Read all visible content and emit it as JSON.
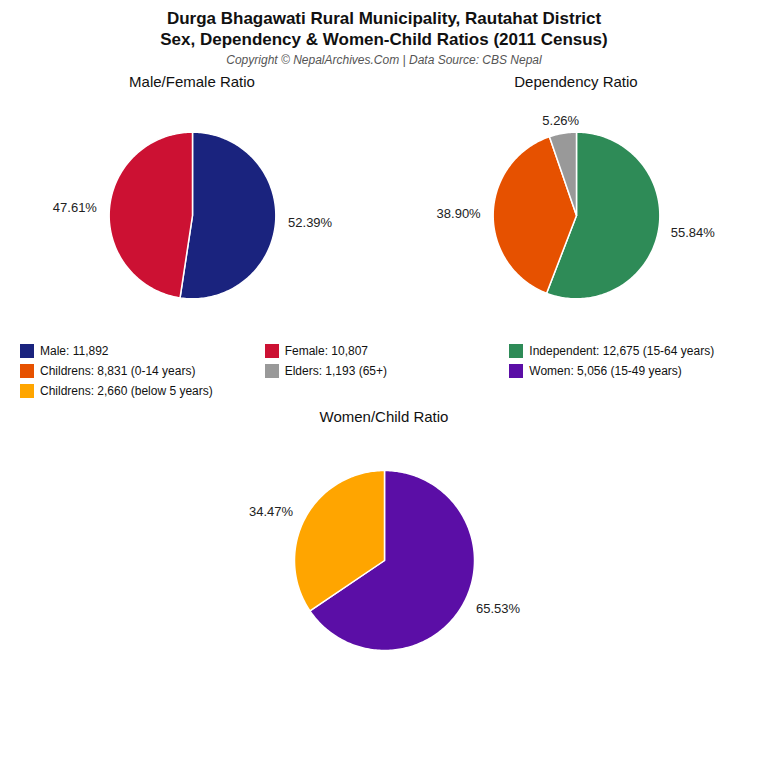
{
  "title": "Durga Bhagawati Rural Municipality, Rautahat District",
  "subtitle": "Sex, Dependency & Women-Child Ratios (2011 Census)",
  "caption": "Copyright © NepalArchives.Com | Data Source: CBS Nepal",
  "chart_data": [
    {
      "type": "pie",
      "title": "Male/Female Ratio",
      "categories": [
        "Male: 11,892",
        "Female: 10,807"
      ],
      "values": [
        52.39,
        47.61
      ],
      "value_labels": [
        "52.39%",
        "47.61%"
      ],
      "colors": [
        "#1A237E",
        "#CC1133"
      ],
      "data_labels": true
    },
    {
      "type": "pie",
      "title": "Dependency Ratio",
      "categories": [
        "Independent: 12,675 (15-64 years)",
        "Childrens: 8,831 (0-14 years)",
        "Elders: 1,193 (65+)"
      ],
      "values": [
        55.84,
        38.9,
        5.26
      ],
      "value_labels": [
        "55.84%",
        "38.90%",
        "5.26%"
      ],
      "colors": [
        "#2E8B57",
        "#E65100",
        "#999999"
      ],
      "data_labels": true
    },
    {
      "type": "pie",
      "title": "Women/Child Ratio",
      "categories": [
        "Women: 5,056 (15-49 years)",
        "Childrens: 2,660 (below 5 years)"
      ],
      "values": [
        65.53,
        34.47
      ],
      "value_labels": [
        "65.53%",
        "34.47%"
      ],
      "colors": [
        "#5B0EA6",
        "#FFA500"
      ],
      "data_labels": true
    }
  ]
}
